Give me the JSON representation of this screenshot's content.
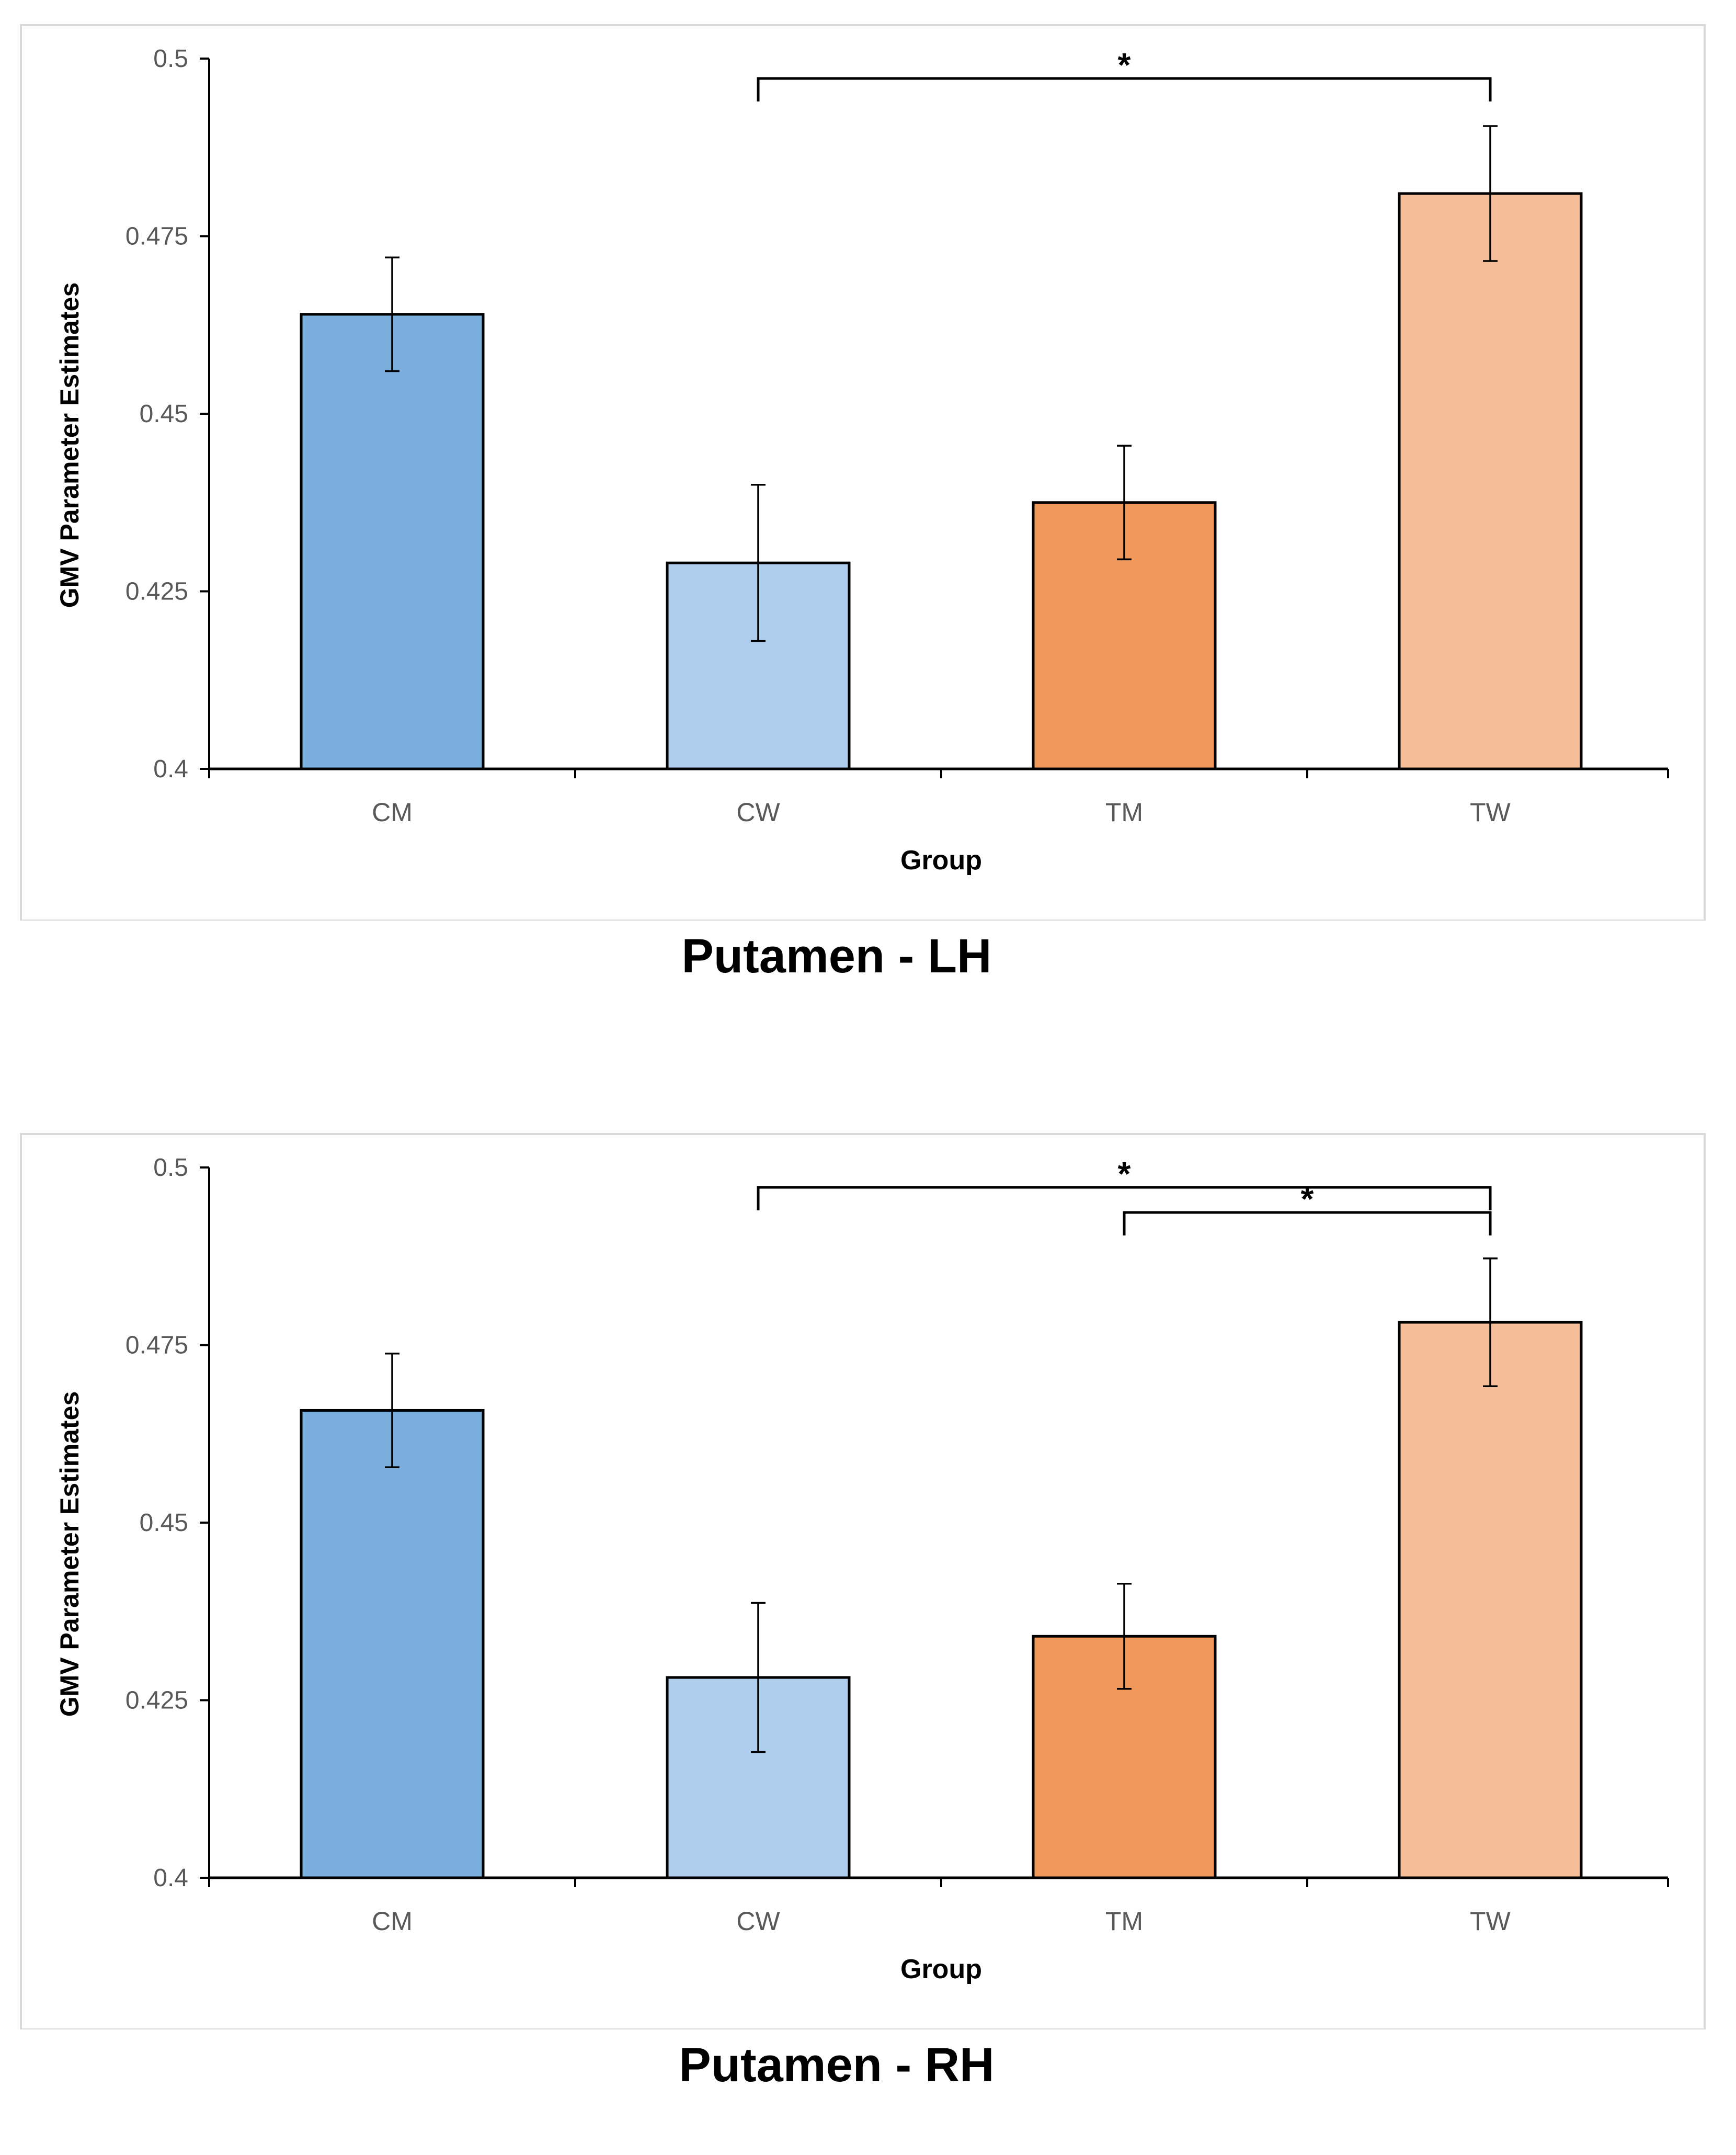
{
  "chart_data": [
    {
      "type": "bar",
      "title": "Putamen - LH",
      "xlabel": "Group",
      "ylabel": "GMV Parameter Estimates",
      "categories": [
        "CM",
        "CW",
        "TM",
        "TW"
      ],
      "values": [
        0.464,
        0.429,
        0.4375,
        0.481
      ],
      "errors": [
        0.008,
        0.011,
        0.008,
        0.0095
      ],
      "colors": [
        "#7aaedd",
        "#afcdec",
        "#f0975a",
        "#f5be99"
      ],
      "ylim": [
        0.4,
        0.5
      ],
      "yticks": [
        "0.4",
        "0.425",
        "0.45",
        "0.475",
        "0.5"
      ],
      "grid": false,
      "significance": [
        {
          "from": "CW",
          "to": "TW",
          "label": "*"
        }
      ]
    },
    {
      "type": "bar",
      "title": "Putamen - RH",
      "xlabel": "Group",
      "ylabel": "GMV Parameter Estimates",
      "categories": [
        "CM",
        "CW",
        "TM",
        "TW"
      ],
      "values": [
        0.4658,
        0.4282,
        0.434,
        0.4782
      ],
      "errors": [
        0.008,
        0.0105,
        0.0074,
        0.009
      ],
      "colors": [
        "#7aaedd",
        "#afcdec",
        "#f0975a",
        "#f5be99"
      ],
      "ylim": [
        0.4,
        0.5
      ],
      "yticks": [
        "0.4",
        "0.425",
        "0.45",
        "0.475",
        "0.5"
      ],
      "grid": false,
      "significance": [
        {
          "from": "CW",
          "to": "TW",
          "label": "*"
        },
        {
          "from": "TM",
          "to": "TW",
          "label": "*"
        }
      ]
    }
  ]
}
